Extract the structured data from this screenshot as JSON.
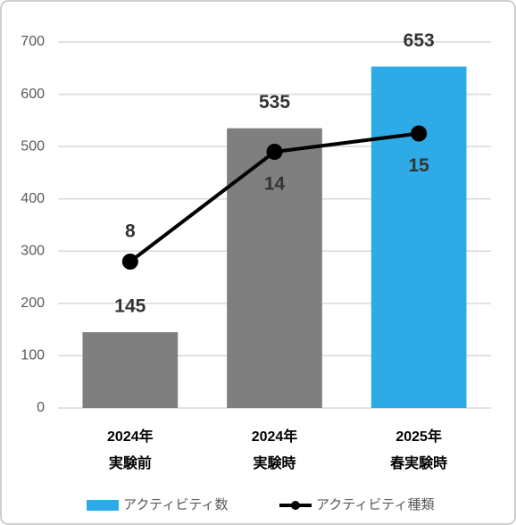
{
  "chart_data": {
    "type": "bar_line",
    "categories": [
      [
        "2024年",
        "実験前"
      ],
      [
        "2024年",
        "実験時"
      ],
      [
        "2025年",
        "春実験時"
      ]
    ],
    "series": [
      {
        "name": "アクティビティ数",
        "type": "bar",
        "color": "#2eaae6",
        "bar_colors": [
          "#7f7f7f",
          "#7f7f7f",
          "#2eaae6"
        ],
        "values": [
          145,
          535,
          653
        ]
      },
      {
        "name": "アクティビティ種類",
        "type": "line",
        "axis": "y2",
        "color": "#000000",
        "values": [
          8,
          14,
          15
        ]
      }
    ],
    "ylim": [
      0,
      700
    ],
    "yticks": [
      0,
      100,
      200,
      300,
      400,
      500,
      600,
      700
    ],
    "y2lim": [
      0,
      20
    ],
    "grid": true,
    "legend": "bottom"
  }
}
